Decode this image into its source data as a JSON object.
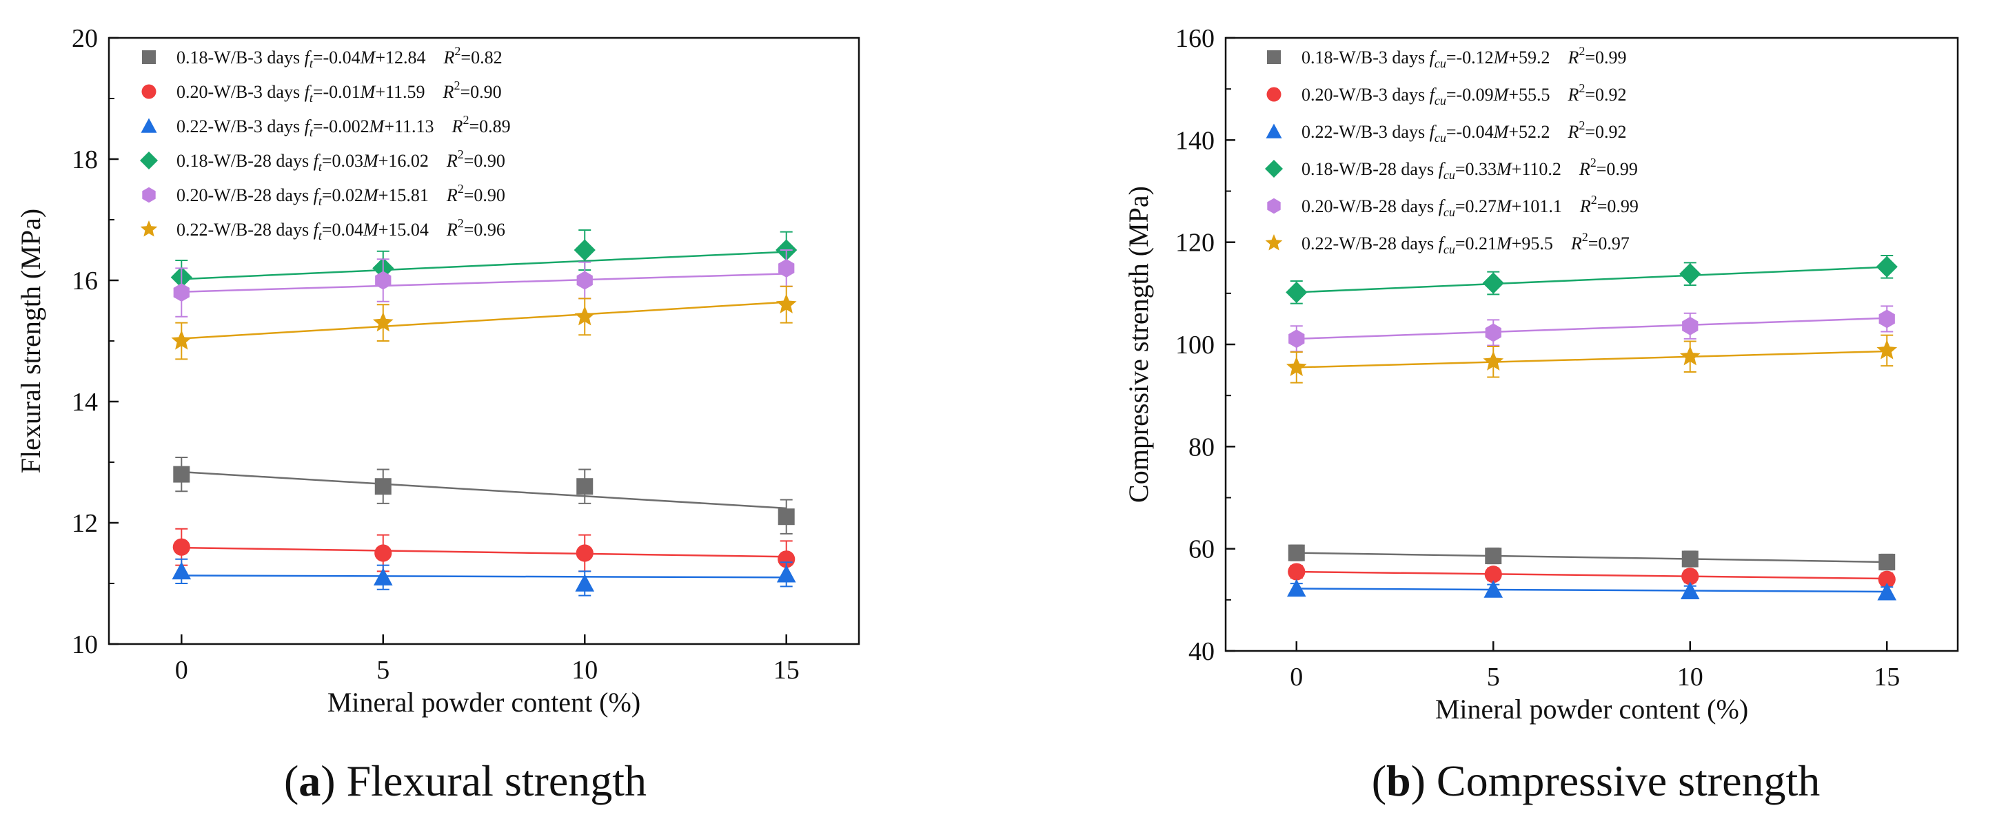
{
  "chart_data": [
    {
      "type": "scatter",
      "title": "",
      "caption": {
        "letter": "a",
        "text": " Flexural strength"
      },
      "xlabel": "Mineral powder content (%)",
      "ylabel": "Flexural strength (MPa)",
      "xlim": [
        -1.8,
        16.8
      ],
      "ylim": [
        10,
        20
      ],
      "xticks": [
        "0",
        "5",
        "10",
        "15"
      ],
      "xtick_values": [
        0,
        5,
        10,
        15
      ],
      "yticks": [
        "10",
        "12",
        "14",
        "16",
        "18",
        "20"
      ],
      "ytick_values": [
        10,
        12,
        14,
        16,
        18,
        20
      ],
      "x": [
        0,
        5,
        10,
        15
      ],
      "series": [
        {
          "name": "0.18-W/B-3 days",
          "color": "#6e6e6e",
          "marker": "square",
          "values": [
            12.8,
            12.6,
            12.6,
            12.1
          ],
          "errors": [
            0.28,
            0.28,
            0.28,
            0.28
          ],
          "fit": {
            "slope": -0.04,
            "intercept": 12.84
          },
          "legend": {
            "symbol": "f",
            "sub": "t",
            "eq": "=-0.04",
            "var": "M",
            "rest": "+12.84",
            "r2lbl": "R",
            "sup": "2",
            "r2": "=0.82"
          }
        },
        {
          "name": "0.20-W/B-3 days",
          "color": "#f03c3c",
          "marker": "circle",
          "values": [
            11.6,
            11.5,
            11.5,
            11.4
          ],
          "errors": [
            0.3,
            0.3,
            0.3,
            0.3
          ],
          "fit": {
            "slope": -0.01,
            "intercept": 11.59
          },
          "legend": {
            "symbol": "f",
            "sub": "t",
            "eq": "=-0.01",
            "var": "M",
            "rest": "+11.59",
            "r2lbl": "R",
            "sup": "2",
            "r2": "=0.90"
          }
        },
        {
          "name": "0.22-W/B-3 days",
          "color": "#1e6fe0",
          "marker": "triangle",
          "values": [
            11.2,
            11.1,
            11.0,
            11.15
          ],
          "errors": [
            0.2,
            0.2,
            0.2,
            0.2
          ],
          "fit": {
            "slope": -0.002,
            "intercept": 11.13
          },
          "legend": {
            "symbol": "f",
            "sub": "t",
            "eq": "=-0.002",
            "var": "M",
            "rest": "+11.13",
            "r2lbl": "R",
            "sup": "2",
            "r2": "=0.89"
          }
        },
        {
          "name": "0.18-W/B-28 days",
          "color": "#18a86a",
          "marker": "diamond",
          "values": [
            16.05,
            16.2,
            16.5,
            16.5
          ],
          "errors": [
            0.28,
            0.28,
            0.33,
            0.3
          ],
          "fit": {
            "slope": 0.03,
            "intercept": 16.02
          },
          "legend": {
            "symbol": "f",
            "sub": "t",
            "eq": "=0.03",
            "var": "M",
            "rest": "+16.02",
            "r2lbl": "R",
            "sup": "2",
            "r2": "=0.90"
          }
        },
        {
          "name": "0.20-W/B-28 days",
          "color": "#c080e0",
          "marker": "hexagon",
          "values": [
            15.8,
            16.0,
            16.0,
            16.2
          ],
          "errors": [
            0.4,
            0.35,
            0.3,
            0.3
          ],
          "fit": {
            "slope": 0.02,
            "intercept": 15.81
          },
          "legend": {
            "symbol": "f",
            "sub": "t",
            "eq": "=0.02",
            "var": "M",
            "rest": "+15.81",
            "r2lbl": "R",
            "sup": "2",
            "r2": "=0.90"
          }
        },
        {
          "name": "0.22-W/B-28 days",
          "color": "#e0a010",
          "marker": "star",
          "values": [
            15.0,
            15.3,
            15.4,
            15.6
          ],
          "errors": [
            0.3,
            0.3,
            0.3,
            0.3
          ],
          "fit": {
            "slope": 0.04,
            "intercept": 15.04
          },
          "legend": {
            "symbol": "f",
            "sub": "t",
            "eq": "=0.04",
            "var": "M",
            "rest": "+15.04",
            "r2lbl": "R",
            "sup": "2",
            "r2": "=0.96"
          }
        }
      ]
    },
    {
      "type": "scatter",
      "title": "",
      "caption": {
        "letter": "b",
        "text": " Compressive strength"
      },
      "xlabel": "Mineral powder content (%)",
      "ylabel": "Compressive strength (MPa)",
      "xlim": [
        -1.8,
        16.8
      ],
      "ylim": [
        40,
        160
      ],
      "xticks": [
        "0",
        "5",
        "10",
        "15"
      ],
      "xtick_values": [
        0,
        5,
        10,
        15
      ],
      "yticks": [
        "40",
        "60",
        "80",
        "100",
        "120",
        "140",
        "160"
      ],
      "ytick_values": [
        40,
        60,
        80,
        100,
        120,
        140,
        160
      ],
      "x": [
        0,
        5,
        10,
        15
      ],
      "series": [
        {
          "name": "0.18-W/B-3 days",
          "color": "#6e6e6e",
          "marker": "square",
          "values": [
            59.2,
            58.6,
            58.0,
            57.4
          ],
          "errors": [
            1.5,
            1.5,
            1.5,
            1.5
          ],
          "fit": {
            "slope": -0.12,
            "intercept": 59.2
          },
          "legend": {
            "symbol": "f",
            "sub": "cu",
            "eq": "=-0.12",
            "var": "M",
            "rest": "+59.2",
            "r2lbl": "R",
            "sup": "2",
            "r2": "=0.99"
          }
        },
        {
          "name": "0.20-W/B-3 days",
          "color": "#f03c3c",
          "marker": "circle",
          "values": [
            55.5,
            55.0,
            54.6,
            54.0
          ],
          "errors": [
            1.2,
            1.2,
            1.2,
            1.2
          ],
          "fit": {
            "slope": -0.09,
            "intercept": 55.5
          },
          "legend": {
            "symbol": "f",
            "sub": "cu",
            "eq": "=-0.09",
            "var": "M",
            "rest": "+55.5",
            "r2lbl": "R",
            "sup": "2",
            "r2": "=0.92"
          }
        },
        {
          "name": "0.22-W/B-3 days",
          "color": "#1e6fe0",
          "marker": "triangle",
          "values": [
            52.2,
            52.0,
            51.7,
            51.5
          ],
          "errors": [
            1.0,
            1.0,
            1.0,
            1.0
          ],
          "fit": {
            "slope": -0.04,
            "intercept": 52.2
          },
          "legend": {
            "symbol": "f",
            "sub": "cu",
            "eq": "=-0.04",
            "var": "M",
            "rest": "+52.2",
            "r2lbl": "R",
            "sup": "2",
            "r2": "=0.92"
          }
        },
        {
          "name": "0.18-W/B-28 days",
          "color": "#18a86a",
          "marker": "diamond",
          "values": [
            110.2,
            112.0,
            113.8,
            115.2
          ],
          "errors": [
            2.2,
            2.2,
            2.2,
            2.2
          ],
          "fit": {
            "slope": 0.33,
            "intercept": 110.2
          },
          "legend": {
            "symbol": "f",
            "sub": "cu",
            "eq": "=0.33",
            "var": "M",
            "rest": "+110.2",
            "r2lbl": "R",
            "sup": "2",
            "r2": "=0.99"
          }
        },
        {
          "name": "0.20-W/B-28 days",
          "color": "#c080e0",
          "marker": "hexagon",
          "values": [
            101.1,
            102.3,
            103.6,
            105.0
          ],
          "errors": [
            2.5,
            2.5,
            2.5,
            2.5
          ],
          "fit": {
            "slope": 0.27,
            "intercept": 101.1
          },
          "legend": {
            "symbol": "f",
            "sub": "cu",
            "eq": "=0.27",
            "var": "M",
            "rest": "+101.1",
            "r2lbl": "R",
            "sup": "2",
            "r2": "=0.99"
          }
        },
        {
          "name": "0.22-W/B-28 days",
          "color": "#e0a010",
          "marker": "star",
          "values": [
            95.5,
            96.6,
            97.6,
            98.8
          ],
          "errors": [
            3.0,
            3.0,
            3.0,
            3.0
          ],
          "fit": {
            "slope": 0.21,
            "intercept": 95.5
          },
          "legend": {
            "symbol": "f",
            "sub": "cu",
            "eq": "=0.21",
            "var": "M",
            "rest": "+95.5",
            "r2lbl": "R",
            "sup": "2",
            "r2": "=0.97"
          }
        }
      ]
    }
  ]
}
